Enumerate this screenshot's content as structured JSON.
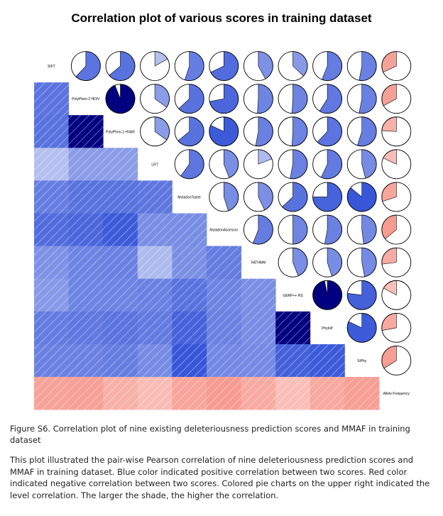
{
  "chart_data": {
    "type": "heatmap",
    "title": "Correlation plot of various scores in training dataset",
    "variables": [
      "SIFT",
      "PolyPhen-2 HDIV",
      "PolyPhen-2 HVAR",
      "LRT",
      "MutationTaster",
      "MutationAssessor",
      "FATHMM",
      "GERP++ RS",
      "PhyloP",
      "SiPhy",
      "Allele Frequency"
    ],
    "lower_panel": "shaded squares",
    "upper_panel": "pie charts",
    "color_positive": "#2F4FD6",
    "color_negative": "#F47B6E",
    "correlation_matrix": [
      [
        1,
        0.62,
        0.64,
        0.17,
        0.55,
        0.68,
        0.42,
        0.37,
        0.56,
        0.53,
        -0.32
      ],
      [
        0.62,
        1,
        0.94,
        0.35,
        0.63,
        0.72,
        0.51,
        0.51,
        0.59,
        0.53,
        -0.33
      ],
      [
        0.64,
        0.94,
        1,
        0.35,
        0.64,
        0.82,
        0.53,
        0.51,
        0.62,
        0.55,
        -0.24
      ],
      [
        0.17,
        0.35,
        0.35,
        1,
        0.6,
        0.44,
        0.19,
        0.53,
        0.57,
        0.46,
        -0.18
      ],
      [
        0.55,
        0.63,
        0.64,
        0.6,
        1,
        0.45,
        0.43,
        0.63,
        0.75,
        0.86,
        -0.3
      ],
      [
        0.68,
        0.72,
        0.82,
        0.44,
        0.45,
        1,
        0.56,
        0.5,
        0.53,
        0.48,
        -0.36
      ],
      [
        0.42,
        0.51,
        0.53,
        0.19,
        0.43,
        0.56,
        1,
        0.44,
        0.45,
        0.47,
        -0.27
      ],
      [
        0.37,
        0.51,
        0.51,
        0.53,
        0.63,
        0.5,
        0.44,
        1,
        0.97,
        0.77,
        -0.17
      ],
      [
        0.56,
        0.59,
        0.62,
        0.57,
        0.75,
        0.53,
        0.45,
        0.97,
        1,
        0.82,
        -0.28
      ],
      [
        0.53,
        0.53,
        0.55,
        0.46,
        0.86,
        0.48,
        0.47,
        0.77,
        0.82,
        1,
        -0.34
      ],
      [
        -0.32,
        -0.33,
        -0.24,
        -0.18,
        -0.3,
        -0.36,
        -0.27,
        -0.17,
        -0.28,
        -0.34,
        1
      ]
    ]
  },
  "caption": {
    "figure_label": "Figure S6. Correlation plot of nine existing deleteriousness prediction scores and MMAF in training dataset",
    "description": "This plot illustrated the pair-wise Pearson correlation of nine deleteriousness prediction scores and MMAF in training dataset. Blue color indicated positive correlation between two scores. Red color indicated negative correlation between two scores. Colored pie charts on the upper right indicated the level correlation. The larger the shade, the higher the correlation."
  }
}
